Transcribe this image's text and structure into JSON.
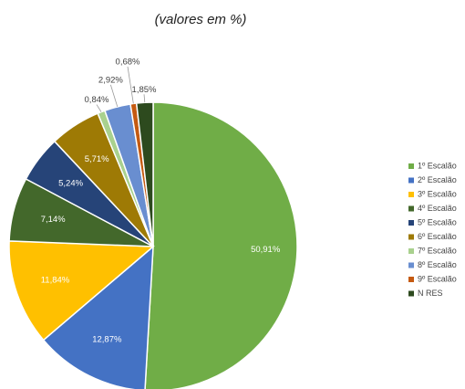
{
  "chart_data": {
    "type": "pie",
    "title": "(valores em %)",
    "categories": [
      "1º Escalão",
      "2º Escalão",
      "3º Escalão",
      "4º Escalão",
      "5º Escalão",
      "6º Escalão",
      "7º Escalão",
      "8º Escalão",
      "9º Escalão",
      "N RES"
    ],
    "values": [
      50.91,
      12.87,
      11.84,
      7.14,
      5.24,
      5.71,
      0.84,
      2.92,
      0.68,
      1.85
    ],
    "value_labels": [
      "50,91%",
      "12,87%",
      "11,84%",
      "7,14%",
      "5,24%",
      "5,71%",
      "0,84%",
      "2,92%",
      "0,68%",
      "1,85%"
    ],
    "colors": [
      "#70ad47",
      "#4472c4",
      "#ffc000",
      "#43682b",
      "#264478",
      "#9e7a05",
      "#a9d18e",
      "#698ed0",
      "#c55a11",
      "#2d4a1e"
    ],
    "legend": "right"
  }
}
